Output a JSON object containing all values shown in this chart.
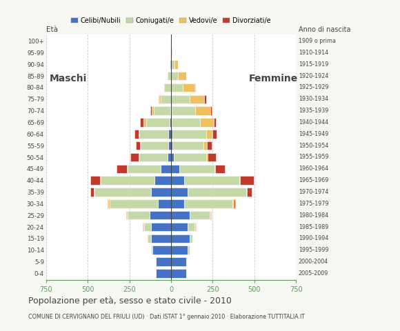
{
  "age_groups": [
    "0-4",
    "5-9",
    "10-14",
    "15-19",
    "20-24",
    "25-29",
    "30-34",
    "35-39",
    "40-44",
    "45-49",
    "50-54",
    "55-59",
    "60-64",
    "65-69",
    "70-74",
    "75-79",
    "80-84",
    "85-89",
    "90-94",
    "95-99",
    "100+"
  ],
  "anno_nascita": [
    "2005-2009",
    "2000-2004",
    "1995-1999",
    "1990-1994",
    "1985-1989",
    "1980-1984",
    "1975-1979",
    "1970-1974",
    "1965-1969",
    "1960-1964",
    "1955-1959",
    "1950-1954",
    "1945-1949",
    "1940-1944",
    "1935-1939",
    "1930-1934",
    "1925-1929",
    "1920-1924",
    "1915-1919",
    "1910-1914",
    "1909 o prima"
  ],
  "males": {
    "celibi": [
      90,
      90,
      110,
      120,
      120,
      130,
      80,
      120,
      100,
      60,
      20,
      15,
      15,
      10,
      5,
      0,
      0,
      0,
      0,
      0,
      0
    ],
    "coniugati": [
      5,
      5,
      10,
      20,
      40,
      130,
      290,
      340,
      320,
      200,
      170,
      165,
      175,
      140,
      100,
      60,
      40,
      20,
      10,
      5,
      0
    ],
    "vedovi": [
      0,
      0,
      0,
      5,
      5,
      5,
      5,
      5,
      5,
      5,
      5,
      5,
      5,
      15,
      10,
      10,
      5,
      5,
      0,
      0,
      0
    ],
    "divorziati": [
      0,
      0,
      0,
      0,
      5,
      5,
      5,
      20,
      60,
      60,
      50,
      25,
      25,
      20,
      10,
      5,
      0,
      0,
      0,
      0,
      0
    ]
  },
  "females": {
    "nubili": [
      90,
      90,
      100,
      110,
      100,
      110,
      80,
      100,
      80,
      50,
      15,
      10,
      10,
      5,
      5,
      0,
      0,
      0,
      0,
      0,
      0
    ],
    "coniugate": [
      5,
      5,
      10,
      20,
      40,
      120,
      290,
      350,
      330,
      210,
      195,
      185,
      200,
      170,
      140,
      110,
      70,
      40,
      20,
      5,
      0
    ],
    "vedove": [
      0,
      0,
      0,
      0,
      5,
      5,
      5,
      5,
      5,
      5,
      10,
      20,
      40,
      80,
      90,
      90,
      70,
      50,
      20,
      5,
      2
    ],
    "divorziate": [
      0,
      0,
      0,
      0,
      5,
      5,
      10,
      30,
      80,
      60,
      50,
      30,
      25,
      15,
      10,
      10,
      5,
      0,
      0,
      0,
      0
    ]
  },
  "colors": {
    "celibi": "#4472c4",
    "coniugati": "#c5d9a8",
    "vedovi": "#f0c060",
    "divorziati": "#c0392b"
  },
  "xlim": 750,
  "title": "Popolazione per età, sesso e stato civile - 2010",
  "subtitle": "COMUNE DI CERVIGNANO DEL FRIULI (UD) · Dati ISTAT 1° gennaio 2010 · Elaborazione TUTTITALIA.IT",
  "ylabel_left": "Età",
  "ylabel_right": "Anno di nascita",
  "legend_labels": [
    "Celibi/Nubili",
    "Coniugati/e",
    "Vedovi/e",
    "Divorziati/e"
  ],
  "bg_color": "#f7f7f2",
  "chart_bg": "#ffffff",
  "bar_height": 0.75,
  "maschi_label": "Maschi",
  "femmine_label": "Femmine",
  "xtick_color": "#5a9a5a",
  "grid_color": "#bbbbbb",
  "text_color": "#444444"
}
